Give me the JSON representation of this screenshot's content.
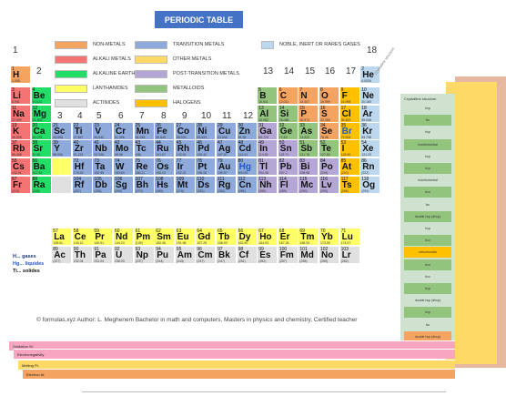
{
  "title": "PERIODIC TABLE",
  "groups": {
    "g1": "1",
    "g2": "2",
    "g3": "3",
    "g4": "4",
    "g5": "5",
    "g6": "6",
    "g7": "7",
    "g8": "8",
    "g9": "9",
    "g10": "10",
    "g11": "11",
    "g12": "12",
    "g13": "13",
    "g14": "14",
    "g15": "15",
    "g16": "16",
    "g17": "17",
    "g18": "18"
  },
  "legend": [
    {
      "label": "NON-METALS",
      "color": "#f4a460"
    },
    {
      "label": "ALKALI METALS",
      "color": "#f47373"
    },
    {
      "label": "ALKALINE EARTH METALS",
      "color": "#22dd66"
    },
    {
      "label": "LANTHANIDES",
      "color": "#ffff66"
    },
    {
      "label": "ACTINIDES",
      "color": "#e0e0e0"
    },
    {
      "label": "TRANSITION METALS",
      "color": "#8eaadb"
    },
    {
      "label": "OTHER METALS",
      "color": "#ffd966"
    },
    {
      "label": "POST-TRANSITION METALS",
      "color": "#b4a7d6"
    },
    {
      "label": "METALLOIDS",
      "color": "#93c47d"
    },
    {
      "label": "HALOGENS",
      "color": "#ffc000"
    },
    {
      "label": "NOBLE, INERT OR RARES GASES",
      "color": "#bdd7ee"
    }
  ],
  "elements": [
    {
      "n": "1",
      "s": "H",
      "m": "1.008",
      "c": "#f4a460"
    },
    {
      "n": "2",
      "s": "He",
      "m": "4.0026",
      "c": "#bdd7ee"
    },
    {
      "n": "3",
      "s": "Li",
      "m": "6.941",
      "c": "#f47373"
    },
    {
      "n": "4",
      "s": "Be",
      "m": "9.0122",
      "c": "#22dd66"
    },
    {
      "n": "5",
      "s": "B",
      "m": "10.811",
      "c": "#93c47d"
    },
    {
      "n": "6",
      "s": "C",
      "m": "12.011",
      "c": "#f4a460"
    },
    {
      "n": "7",
      "s": "N",
      "m": "14.007",
      "c": "#f4a460"
    },
    {
      "n": "8",
      "s": "O",
      "m": "15.999",
      "c": "#f4a460"
    },
    {
      "n": "9",
      "s": "F",
      "m": "18.998",
      "c": "#ffc000"
    },
    {
      "n": "10",
      "s": "Ne",
      "m": "20.180",
      "c": "#bdd7ee"
    },
    {
      "n": "11",
      "s": "Na",
      "m": "22.990",
      "c": "#f47373"
    },
    {
      "n": "12",
      "s": "Mg",
      "m": "24.305",
      "c": "#22dd66"
    },
    {
      "n": "13",
      "s": "Al",
      "m": "26.982",
      "c": "#93c47d"
    },
    {
      "n": "14",
      "s": "Si",
      "m": "28.086",
      "c": "#93c47d"
    },
    {
      "n": "15",
      "s": "P",
      "m": "30.974",
      "c": "#f4a460"
    },
    {
      "n": "16",
      "s": "S",
      "m": "32.065",
      "c": "#f4a460"
    },
    {
      "n": "17",
      "s": "Cl",
      "m": "35.453",
      "c": "#ffc000"
    },
    {
      "n": "18",
      "s": "Ar",
      "m": "39.948",
      "c": "#bdd7ee"
    },
    {
      "n": "19",
      "s": "K",
      "m": "39.098",
      "c": "#f47373"
    },
    {
      "n": "20",
      "s": "Ca",
      "m": "40.078",
      "c": "#22dd66"
    },
    {
      "n": "21",
      "s": "Sc",
      "m": "44.956",
      "c": "#8eaadb"
    },
    {
      "n": "22",
      "s": "Ti",
      "m": "47.867",
      "c": "#8eaadb"
    },
    {
      "n": "23",
      "s": "V",
      "m": "50.942",
      "c": "#8eaadb"
    },
    {
      "n": "24",
      "s": "Cr",
      "m": "51.996",
      "c": "#8eaadb"
    },
    {
      "n": "25",
      "s": "Mn",
      "m": "54.938",
      "c": "#8eaadb"
    },
    {
      "n": "26",
      "s": "Fe",
      "m": "55.845",
      "c": "#8eaadb"
    },
    {
      "n": "27",
      "s": "Co",
      "m": "58.933",
      "c": "#8eaadb"
    },
    {
      "n": "28",
      "s": "Ni",
      "m": "58.693",
      "c": "#8eaadb"
    },
    {
      "n": "29",
      "s": "Cu",
      "m": "63.546",
      "c": "#8eaadb"
    },
    {
      "n": "30",
      "s": "Zn",
      "m": "65.38",
      "c": "#8eaadb"
    },
    {
      "n": "31",
      "s": "Ga",
      "m": "69.723",
      "c": "#b4a7d6"
    },
    {
      "n": "32",
      "s": "Ge",
      "m": "72.63",
      "c": "#93c47d"
    },
    {
      "n": "33",
      "s": "As",
      "m": "74.922",
      "c": "#93c47d"
    },
    {
      "n": "34",
      "s": "Se",
      "m": "78.96",
      "c": "#f4a460"
    },
    {
      "n": "35",
      "s": "Br",
      "m": "79.904",
      "c": "#ffc000"
    },
    {
      "n": "36",
      "s": "Kr",
      "m": "83.798",
      "c": "#bdd7ee"
    },
    {
      "n": "37",
      "s": "Rb",
      "m": "85.468",
      "c": "#f47373"
    },
    {
      "n": "38",
      "s": "Sr",
      "m": "87.62",
      "c": "#22dd66"
    },
    {
      "n": "39",
      "s": "Y",
      "m": "88.906",
      "c": "#8eaadb"
    },
    {
      "n": "40",
      "s": "Zr",
      "m": "91.224",
      "c": "#8eaadb"
    },
    {
      "n": "41",
      "s": "Nb",
      "m": "92.906",
      "c": "#8eaadb"
    },
    {
      "n": "42",
      "s": "Mo",
      "m": "95.96",
      "c": "#8eaadb"
    },
    {
      "n": "43",
      "s": "Tc",
      "m": "(98)",
      "c": "#8eaadb"
    },
    {
      "n": "44",
      "s": "Ru",
      "m": "101.07",
      "c": "#8eaadb"
    },
    {
      "n": "45",
      "s": "Rh",
      "m": "102.91",
      "c": "#8eaadb"
    },
    {
      "n": "46",
      "s": "Pd",
      "m": "106.42",
      "c": "#8eaadb"
    },
    {
      "n": "47",
      "s": "Ag",
      "m": "107.87",
      "c": "#8eaadb"
    },
    {
      "n": "48",
      "s": "Cd",
      "m": "112.41",
      "c": "#8eaadb"
    },
    {
      "n": "49",
      "s": "In",
      "m": "114.82",
      "c": "#b4a7d6"
    },
    {
      "n": "50",
      "s": "Sn",
      "m": "118.71",
      "c": "#b4a7d6"
    },
    {
      "n": "51",
      "s": "Sb",
      "m": "121.76",
      "c": "#93c47d"
    },
    {
      "n": "52",
      "s": "Te",
      "m": "127.60",
      "c": "#93c47d"
    },
    {
      "n": "53",
      "s": "I",
      "m": "126.90",
      "c": "#ffc000"
    },
    {
      "n": "54",
      "s": "Xe",
      "m": "131.29",
      "c": "#bdd7ee"
    },
    {
      "n": "55",
      "s": "Cs",
      "m": "132.91",
      "c": "#f47373"
    },
    {
      "n": "56",
      "s": "Ba",
      "m": "137.33",
      "c": "#22dd66"
    },
    {
      "n": "72",
      "s": "Hf",
      "m": "178.49",
      "c": "#8eaadb"
    },
    {
      "n": "73",
      "s": "Ta",
      "m": "180.95",
      "c": "#8eaadb"
    },
    {
      "n": "74",
      "s": "W",
      "m": "183.84",
      "c": "#8eaadb"
    },
    {
      "n": "75",
      "s": "Re",
      "m": "186.21",
      "c": "#8eaadb"
    },
    {
      "n": "76",
      "s": "Os",
      "m": "190.23",
      "c": "#8eaadb"
    },
    {
      "n": "77",
      "s": "Ir",
      "m": "192.22",
      "c": "#8eaadb"
    },
    {
      "n": "78",
      "s": "Pt",
      "m": "195.08",
      "c": "#8eaadb"
    },
    {
      "n": "79",
      "s": "Au",
      "m": "196.97",
      "c": "#8eaadb"
    },
    {
      "n": "80",
      "s": "Hg",
      "m": "200.59",
      "c": "#8eaadb"
    },
    {
      "n": "81",
      "s": "Tl",
      "m": "204.38",
      "c": "#b4a7d6"
    },
    {
      "n": "82",
      "s": "Pb",
      "m": "207.2",
      "c": "#b4a7d6"
    },
    {
      "n": "83",
      "s": "Bi",
      "m": "208.98",
      "c": "#b4a7d6"
    },
    {
      "n": "84",
      "s": "Po",
      "m": "(209)",
      "c": "#b4a7d6"
    },
    {
      "n": "85",
      "s": "At",
      "m": "(210)",
      "c": "#ffc000"
    },
    {
      "n": "86",
      "s": "Rn",
      "m": "(222)",
      "c": "#bdd7ee"
    },
    {
      "n": "87",
      "s": "Fr",
      "m": "(223)",
      "c": "#f47373"
    },
    {
      "n": "88",
      "s": "Ra",
      "m": "(226)",
      "c": "#22dd66"
    },
    {
      "n": "104",
      "s": "Rf",
      "m": "(267)",
      "c": "#8eaadb"
    },
    {
      "n": "105",
      "s": "Db",
      "m": "(268)",
      "c": "#8eaadb"
    },
    {
      "n": "106",
      "s": "Sg",
      "m": "(269)",
      "c": "#8eaadb"
    },
    {
      "n": "107",
      "s": "Bh",
      "m": "(270)",
      "c": "#8eaadb"
    },
    {
      "n": "108",
      "s": "Hs",
      "m": "(269)",
      "c": "#8eaadb"
    },
    {
      "n": "109",
      "s": "Mt",
      "m": "(278)",
      "c": "#8eaadb"
    },
    {
      "n": "110",
      "s": "Ds",
      "m": "(281)",
      "c": "#8eaadb"
    },
    {
      "n": "111",
      "s": "Rg",
      "m": "(282)",
      "c": "#8eaadb"
    },
    {
      "n": "112",
      "s": "Cn",
      "m": "(285)",
      "c": "#8eaadb"
    },
    {
      "n": "113",
      "s": "Nh",
      "m": "(286)",
      "c": "#b4a7d6"
    },
    {
      "n": "114",
      "s": "Fl",
      "m": "(289)",
      "c": "#b4a7d6"
    },
    {
      "n": "115",
      "s": "Mc",
      "m": "(290)",
      "c": "#b4a7d6"
    },
    {
      "n": "116",
      "s": "Lv",
      "m": "(293)",
      "c": "#b4a7d6"
    },
    {
      "n": "117",
      "s": "Ts",
      "m": "(294)",
      "c": "#ffc000"
    },
    {
      "n": "118",
      "s": "Og",
      "m": "(294)",
      "c": "#bdd7ee"
    },
    {
      "n": "57",
      "s": "La",
      "m": "138.91",
      "c": "#ffff66"
    },
    {
      "n": "58",
      "s": "Ce",
      "m": "140.12",
      "c": "#ffff66"
    },
    {
      "n": "59",
      "s": "Pr",
      "m": "140.91",
      "c": "#ffff66"
    },
    {
      "n": "60",
      "s": "Nd",
      "m": "144.24",
      "c": "#ffff66"
    },
    {
      "n": "61",
      "s": "Pm",
      "m": "(145)",
      "c": "#ffff66"
    },
    {
      "n": "62",
      "s": "Sm",
      "m": "150.36",
      "c": "#ffff66"
    },
    {
      "n": "63",
      "s": "Eu",
      "m": "151.96",
      "c": "#ffff66"
    },
    {
      "n": "64",
      "s": "Gd",
      "m": "157.25",
      "c": "#ffff66"
    },
    {
      "n": "65",
      "s": "Tb",
      "m": "158.93",
      "c": "#ffff66"
    },
    {
      "n": "66",
      "s": "Dy",
      "m": "162.50",
      "c": "#ffff66"
    },
    {
      "n": "67",
      "s": "Ho",
      "m": "164.93",
      "c": "#ffff66"
    },
    {
      "n": "68",
      "s": "Er",
      "m": "167.26",
      "c": "#ffff66"
    },
    {
      "n": "69",
      "s": "Tm",
      "m": "168.93",
      "c": "#ffff66"
    },
    {
      "n": "70",
      "s": "Yb",
      "m": "173.05",
      "c": "#ffff66"
    },
    {
      "n": "71",
      "s": "Lu",
      "m": "174.97",
      "c": "#ffff66"
    },
    {
      "n": "89",
      "s": "Ac",
      "m": "(227)",
      "c": "#e0e0e0"
    },
    {
      "n": "90",
      "s": "Th",
      "m": "232.04",
      "c": "#e0e0e0"
    },
    {
      "n": "91",
      "s": "Pa",
      "m": "231.04",
      "c": "#e0e0e0"
    },
    {
      "n": "92",
      "s": "U",
      "m": "238.03",
      "c": "#e0e0e0"
    },
    {
      "n": "93",
      "s": "Np",
      "m": "(237)",
      "c": "#e0e0e0"
    },
    {
      "n": "94",
      "s": "Pu",
      "m": "(244)",
      "c": "#e0e0e0"
    },
    {
      "n": "95",
      "s": "Am",
      "m": "(243)",
      "c": "#e0e0e0"
    },
    {
      "n": "96",
      "s": "Cm",
      "m": "(247)",
      "c": "#e0e0e0"
    },
    {
      "n": "97",
      "s": "Bk",
      "m": "(247)",
      "c": "#e0e0e0"
    },
    {
      "n": "98",
      "s": "Cf",
      "m": "(251)",
      "c": "#e0e0e0"
    },
    {
      "n": "99",
      "s": "Es",
      "m": "(252)",
      "c": "#e0e0e0"
    },
    {
      "n": "100",
      "s": "Fm",
      "m": "(257)",
      "c": "#e0e0e0"
    },
    {
      "n": "101",
      "s": "Md",
      "m": "(258)",
      "c": "#e0e0e0"
    },
    {
      "n": "102",
      "s": "No",
      "m": "(259)",
      "c": "#e0e0e0"
    },
    {
      "n": "103",
      "s": "Lr",
      "m": "(262)",
      "c": "#e0e0e0"
    }
  ],
  "states": {
    "gases": "H... gases",
    "liquids": "Hg... liquides",
    "solids": "Ti... solides"
  },
  "side": {
    "diagonal_label": "Crystalline structure",
    "header": "Crystalline structure",
    "entries": [
      "hcp",
      "fcc",
      "hcp",
      "rhombohedral",
      "hcp",
      "hcp",
      "rhombohedral",
      "bcc",
      "fcc",
      "double hcp (dhcp)",
      "hcp",
      "bcc",
      "orthorhombic",
      "bcc",
      "bcc",
      "hcp",
      "double hcp (dhcp)",
      "hcp",
      "fcc",
      "double hcp (dhcp)",
      "hcp"
    ]
  },
  "strips": [
    {
      "label": "Oxidation St.",
      "color": "#f8a5c2"
    },
    {
      "label": "Electronegativity",
      "color": "#f8a5c2"
    },
    {
      "label": "Melting Pt.",
      "color": "#ffd966"
    },
    {
      "label": "Electron Af.",
      "color": "#f4a460"
    }
  ],
  "footer": "© formulas.xyz   Author: L. Meghenem   Bachelor in math and computers, Masters in physics and chemistry, Certified teacher"
}
